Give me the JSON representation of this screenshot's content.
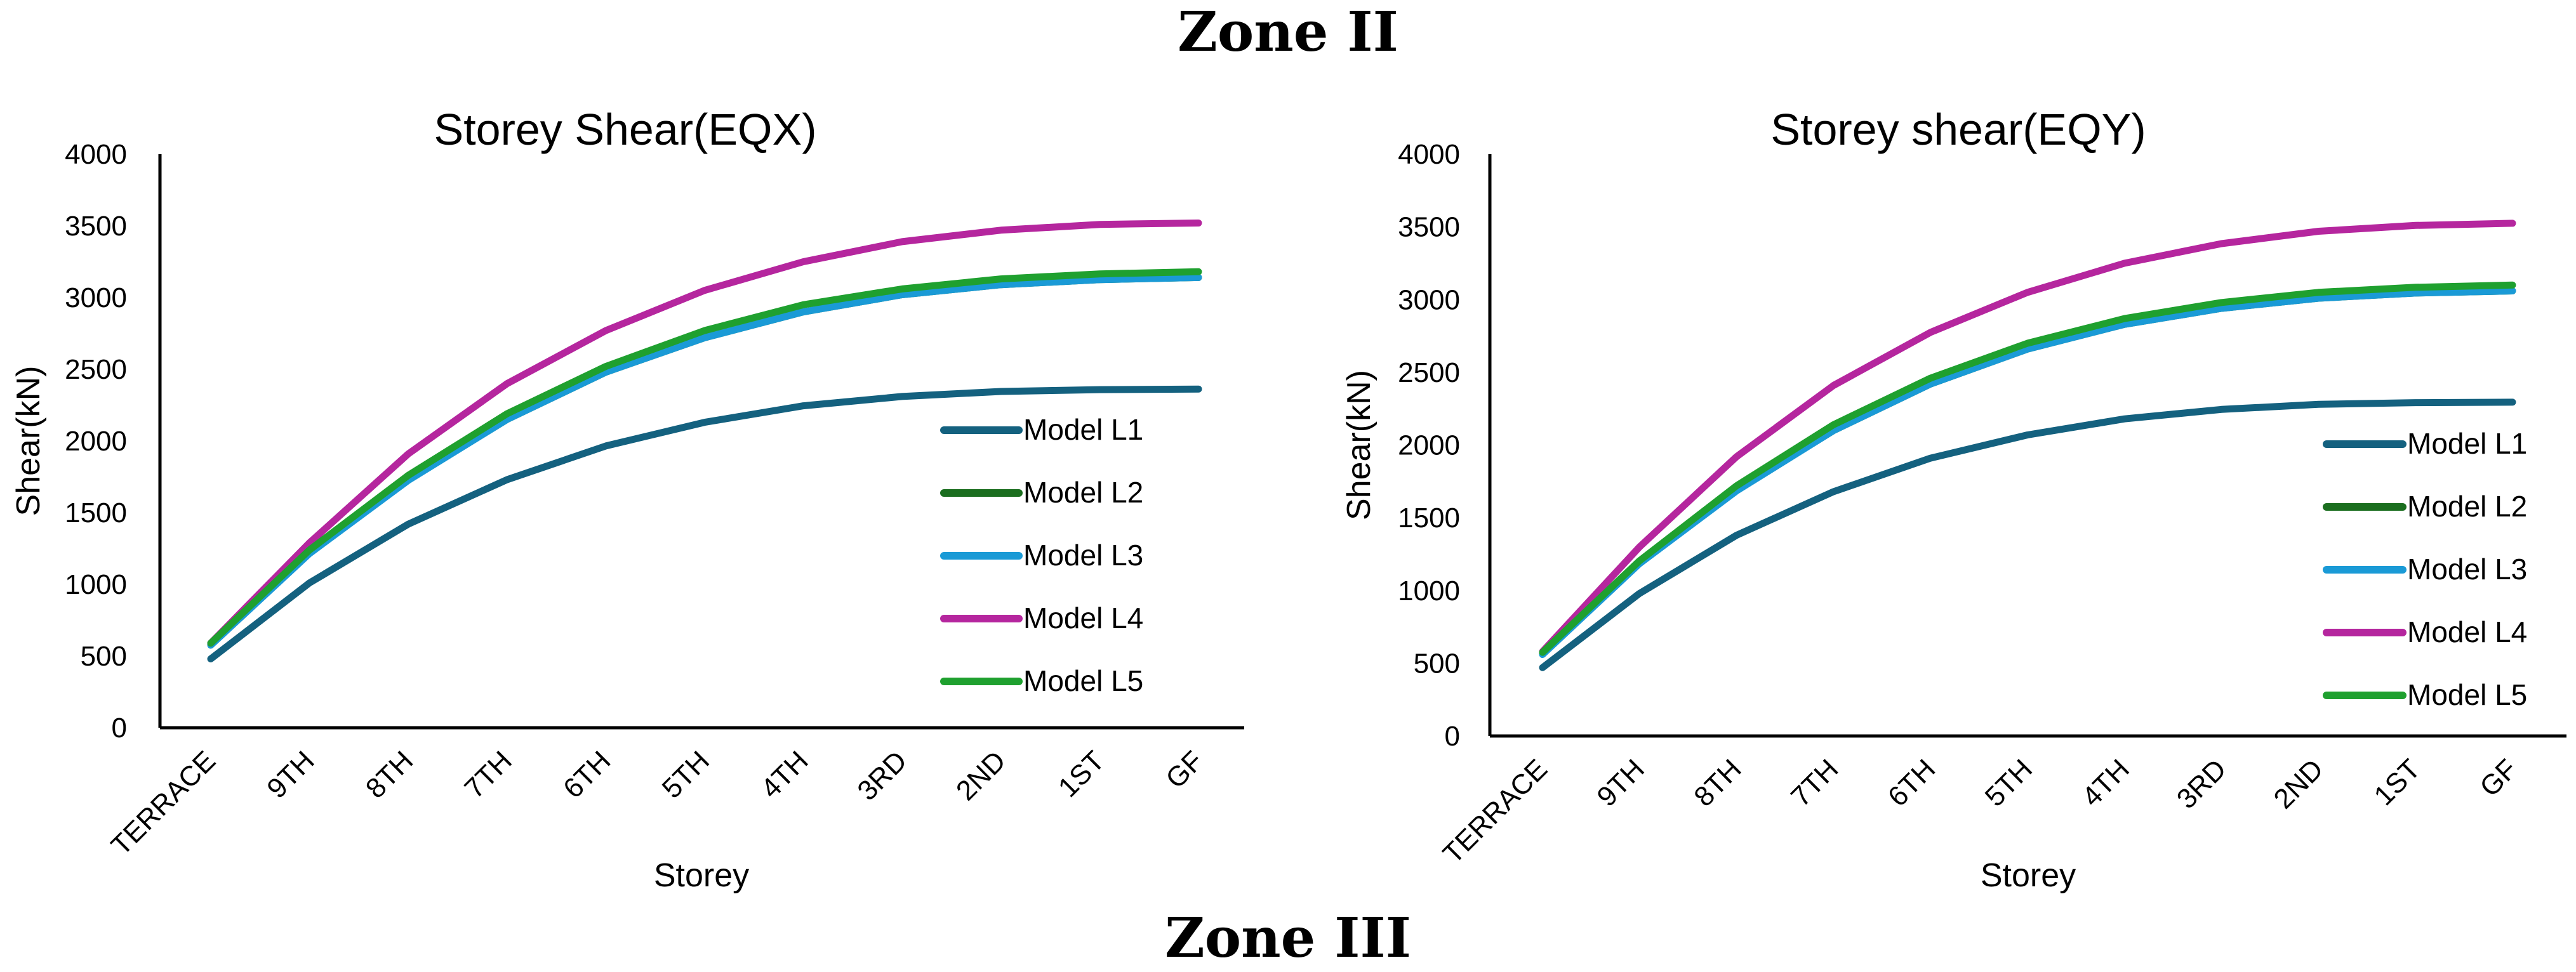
{
  "headings": {
    "top": "Zone II",
    "bottom": "Zone III"
  },
  "colors": {
    "Model L1": "#14617f",
    "Model L2": "#1b6e1f",
    "Model L3": "#1a9ad6",
    "Model L4": "#b5269e",
    "Model L5": "#1fa02f"
  },
  "chart_data": [
    {
      "type": "line",
      "title": "Storey Shear(EQX)",
      "xlabel": "Storey",
      "ylabel": "Shear(kN)",
      "ylim": [
        0,
        4000
      ],
      "yticks": [
        0,
        500,
        1000,
        1500,
        2000,
        2500,
        3000,
        3500,
        4000
      ],
      "categories": [
        "TERRACE",
        "9TH",
        "8TH",
        "7TH",
        "6TH",
        "5TH",
        "4TH",
        "3RD",
        "2ND",
        "1ST",
        "GF"
      ],
      "legend_position": "right",
      "series": [
        {
          "name": "Model L1",
          "values": [
            480,
            1010,
            1420,
            1730,
            1965,
            2130,
            2245,
            2310,
            2345,
            2358,
            2362
          ]
        },
        {
          "name": "Model L2",
          "values": [
            580,
            1220,
            1730,
            2150,
            2480,
            2720,
            2900,
            3020,
            3090,
            3125,
            3140
          ]
        },
        {
          "name": "Model L3",
          "values": [
            575,
            1215,
            1725,
            2150,
            2480,
            2720,
            2900,
            3020,
            3090,
            3125,
            3140
          ]
        },
        {
          "name": "Model L4",
          "values": [
            590,
            1290,
            1910,
            2400,
            2770,
            3050,
            3250,
            3390,
            3470,
            3510,
            3520
          ]
        },
        {
          "name": "Model L5",
          "values": [
            590,
            1240,
            1760,
            2190,
            2520,
            2770,
            2950,
            3060,
            3130,
            3165,
            3180
          ]
        }
      ]
    },
    {
      "type": "line",
      "title": "Storey shear(EQY)",
      "xlabel": "Storey",
      "ylabel": "Shear(kN)",
      "ylim": [
        0,
        4000
      ],
      "yticks": [
        0,
        500,
        1000,
        1500,
        2000,
        2500,
        3000,
        3500,
        4000
      ],
      "categories": [
        "TERRACE",
        "9TH",
        "8TH",
        "7TH",
        "6TH",
        "5TH",
        "4TH",
        "3RD",
        "2ND",
        "1ST",
        "GF"
      ],
      "legend_position": "right",
      "series": [
        {
          "name": "Model L1",
          "values": [
            470,
            980,
            1380,
            1680,
            1910,
            2070,
            2180,
            2245,
            2280,
            2292,
            2295
          ]
        },
        {
          "name": "Model L2",
          "values": [
            565,
            1190,
            1690,
            2100,
            2420,
            2660,
            2830,
            2940,
            3010,
            3045,
            3060
          ]
        },
        {
          "name": "Model L3",
          "values": [
            560,
            1185,
            1685,
            2100,
            2420,
            2660,
            2830,
            2940,
            3010,
            3045,
            3060
          ]
        },
        {
          "name": "Model L4",
          "values": [
            580,
            1300,
            1920,
            2410,
            2775,
            3050,
            3250,
            3385,
            3470,
            3510,
            3525
          ]
        },
        {
          "name": "Model L5",
          "values": [
            575,
            1205,
            1720,
            2140,
            2460,
            2700,
            2870,
            2980,
            3050,
            3085,
            3100
          ]
        }
      ]
    }
  ]
}
